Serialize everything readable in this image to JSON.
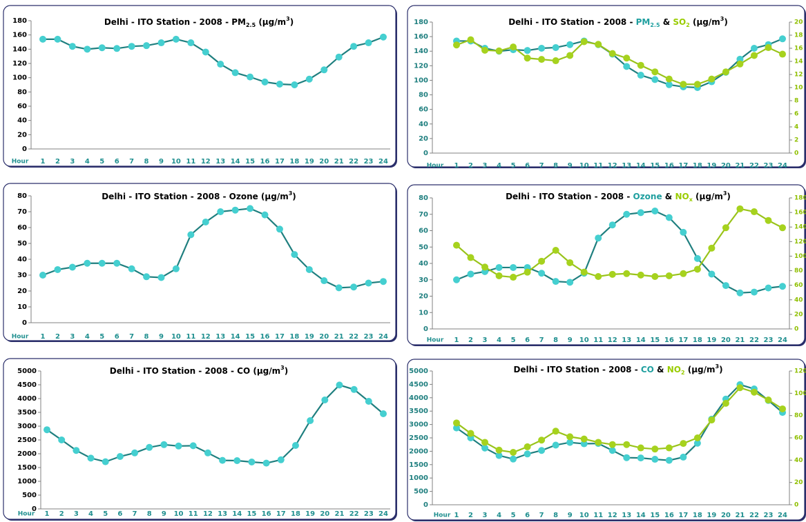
{
  "chart_data": [
    {
      "type": "line",
      "title": [
        {
          "text": "Delhi - ITO Station - 2008 - PM"
        },
        {
          "text": "2.5",
          "sub": true
        },
        {
          "text": " (µg/m"
        },
        {
          "text": "3",
          "sup": true
        },
        {
          "text": ")"
        }
      ],
      "xlabel": "Hour",
      "categories": [
        "1",
        "2",
        "3",
        "4",
        "5",
        "6",
        "7",
        "8",
        "9",
        "10",
        "11",
        "12",
        "13",
        "14",
        "15",
        "16",
        "17",
        "18",
        "19",
        "20",
        "21",
        "22",
        "23",
        "24"
      ],
      "ylim": [
        0,
        180
      ],
      "yticks": [
        0,
        20,
        40,
        60,
        80,
        100,
        120,
        140,
        160,
        180
      ],
      "ytick_color": "#000000",
      "series": [
        {
          "name": "PM2.5",
          "color": "#45cfd0",
          "line_color": "#1f7f7f",
          "values": [
            154,
            154,
            144,
            140,
            142,
            141,
            144,
            145,
            149,
            154,
            149,
            136,
            119,
            107,
            101,
            94,
            91,
            90,
            98,
            111,
            129,
            144,
            149,
            157
          ]
        }
      ]
    },
    {
      "type": "line",
      "title": [
        {
          "text": "Delhi - ITO Station - 2008 - "
        },
        {
          "text": "PM",
          "color": "#1f9f9f"
        },
        {
          "text": "2.5",
          "sub": true,
          "color": "#1f9f9f"
        },
        {
          "text": " & "
        },
        {
          "text": "SO",
          "color": "#99cc00"
        },
        {
          "text": "2",
          "sub": true,
          "color": "#99cc00"
        },
        {
          "text": " (µg/m"
        },
        {
          "text": "3",
          "sup": true
        },
        {
          "text": ")"
        }
      ],
      "xlabel": "Hour",
      "categories": [
        "1",
        "2",
        "3",
        "4",
        "5",
        "6",
        "7",
        "8",
        "9",
        "10",
        "11",
        "12",
        "13",
        "14",
        "15",
        "16",
        "17",
        "18",
        "19",
        "20",
        "21",
        "22",
        "23",
        "24"
      ],
      "ylim": [
        0,
        180
      ],
      "yticks": [
        0,
        20,
        40,
        60,
        80,
        100,
        120,
        140,
        160,
        180
      ],
      "ytick_color": "#1f7f7f",
      "y2lim": [
        0,
        20
      ],
      "y2ticks": [
        0,
        2,
        4,
        6,
        8,
        10,
        12,
        14,
        16,
        18,
        20
      ],
      "y2tick_color": "#8fbf00",
      "series": [
        {
          "name": "PM2.5",
          "color": "#45cfd0",
          "line_color": "#1f7f7f",
          "values": [
            154,
            154,
            144,
            140,
            142,
            141,
            144,
            145,
            149,
            154,
            149,
            136,
            119,
            107,
            101,
            94,
            91,
            90,
            98,
            111,
            129,
            144,
            149,
            157
          ]
        },
        {
          "name": "SO2",
          "color": "#a6d21e",
          "line_color": "#99c31a",
          "axis": "y2",
          "values": [
            16.5,
            17.3,
            15.7,
            15.6,
            16.2,
            14.5,
            14.3,
            14.1,
            14.9,
            17,
            16.6,
            15.2,
            14.5,
            13.4,
            12.4,
            11.3,
            10.5,
            10.5,
            11.3,
            12.4,
            13.6,
            14.9,
            16.1,
            15.1
          ]
        }
      ]
    },
    {
      "type": "line",
      "title": [
        {
          "text": "Delhi - ITO Station - 2008 - Ozone (µg/m"
        },
        {
          "text": "3",
          "sup": true
        },
        {
          "text": ")"
        }
      ],
      "xlabel": "Hour",
      "categories": [
        "1",
        "2",
        "3",
        "4",
        "5",
        "6",
        "7",
        "8",
        "9",
        "10",
        "11",
        "12",
        "13",
        "14",
        "15",
        "16",
        "17",
        "18",
        "19",
        "20",
        "21",
        "22",
        "23",
        "24"
      ],
      "ylim": [
        0,
        80
      ],
      "yticks": [
        0,
        10,
        20,
        30,
        40,
        50,
        60,
        70,
        80
      ],
      "ytick_color": "#000000",
      "series": [
        {
          "name": "Ozone",
          "color": "#45cfd0",
          "line_color": "#1f7f7f",
          "values": [
            30,
            33.5,
            35,
            37.5,
            37.5,
            37.5,
            34,
            29,
            28.5,
            34,
            55.5,
            63.5,
            70,
            71,
            72,
            68,
            59,
            43,
            33.5,
            26.5,
            22,
            22.5,
            25,
            26
          ]
        }
      ]
    },
    {
      "type": "line",
      "title": [
        {
          "text": "Delhi - ITO Station - 2008 - "
        },
        {
          "text": "Ozone",
          "color": "#1f9f9f"
        },
        {
          "text": " & "
        },
        {
          "text": "NO",
          "color": "#99cc00"
        },
        {
          "text": "x",
          "sub": true,
          "color": "#99cc00"
        },
        {
          "text": " (µg/m"
        },
        {
          "text": "3",
          "sup": true
        },
        {
          "text": ")"
        }
      ],
      "xlabel": "Hour",
      "categories": [
        "1",
        "2",
        "3",
        "4",
        "5",
        "6",
        "7",
        "8",
        "9",
        "10",
        "11",
        "12",
        "13",
        "14",
        "15",
        "16",
        "17",
        "18",
        "19",
        "20",
        "21",
        "22",
        "23",
        "24"
      ],
      "ylim": [
        0,
        80
      ],
      "yticks": [
        0,
        10,
        20,
        30,
        40,
        50,
        60,
        70,
        80
      ],
      "ytick_color": "#1f7f7f",
      "y2lim": [
        0,
        180
      ],
      "y2ticks": [
        0,
        20,
        40,
        60,
        80,
        100,
        120,
        140,
        160,
        180
      ],
      "y2tick_color": "#8fbf00",
      "series": [
        {
          "name": "Ozone",
          "color": "#45cfd0",
          "line_color": "#1f7f7f",
          "values": [
            30,
            33.5,
            35,
            37.5,
            37.5,
            37.5,
            34,
            29,
            28.5,
            34,
            55.5,
            63.5,
            70,
            71,
            72,
            68,
            59,
            43,
            33.5,
            26.5,
            22,
            22.5,
            25,
            26
          ]
        },
        {
          "name": "NOx",
          "color": "#a6d21e",
          "line_color": "#99c31a",
          "axis": "y2",
          "values": [
            115,
            98,
            85,
            73,
            71,
            78,
            93,
            108,
            91,
            78,
            72,
            75,
            76,
            74,
            72,
            73,
            76,
            82,
            111,
            139,
            165,
            161,
            149,
            139
          ]
        }
      ]
    },
    {
      "type": "line",
      "title": [
        {
          "text": "Delhi - ITO Station - 2008 - CO (µg/m"
        },
        {
          "text": "3",
          "sup": true
        },
        {
          "text": ")"
        }
      ],
      "xlabel": "Hour",
      "categories": [
        "1",
        "2",
        "3",
        "4",
        "5",
        "6",
        "7",
        "8",
        "9",
        "10",
        "11",
        "12",
        "13",
        "14",
        "15",
        "16",
        "17",
        "18",
        "19",
        "20",
        "21",
        "22",
        "23",
        "24"
      ],
      "ylim": [
        0,
        5000
      ],
      "yticks": [
        0,
        500,
        1000,
        1500,
        2000,
        2500,
        3000,
        3500,
        4000,
        4500,
        5000
      ],
      "ytick_color": "#000000",
      "series": [
        {
          "name": "CO",
          "color": "#45cfd0",
          "line_color": "#1f7f7f",
          "values": [
            2870,
            2500,
            2120,
            1840,
            1710,
            1900,
            2030,
            2230,
            2330,
            2280,
            2290,
            2030,
            1760,
            1750,
            1700,
            1660,
            1780,
            2300,
            3200,
            3950,
            4490,
            4330,
            3900,
            3450
          ]
        }
      ]
    },
    {
      "type": "line",
      "title": [
        {
          "text": "Delhi - ITO Station - 2008 - "
        },
        {
          "text": "CO",
          "color": "#1f9f9f"
        },
        {
          "text": " & "
        },
        {
          "text": "NO",
          "color": "#99cc00"
        },
        {
          "text": "2",
          "sub": true,
          "color": "#99cc00"
        },
        {
          "text": " (µg/m"
        },
        {
          "text": "3",
          "sup": true
        },
        {
          "text": ")"
        }
      ],
      "xlabel": "Hour",
      "categories": [
        "1",
        "2",
        "3",
        "4",
        "5",
        "6",
        "7",
        "8",
        "9",
        "10",
        "11",
        "12",
        "13",
        "14",
        "15",
        "16",
        "17",
        "18",
        "19",
        "20",
        "21",
        "22",
        "23",
        "24"
      ],
      "ylim": [
        0,
        5000
      ],
      "yticks": [
        0,
        500,
        1000,
        1500,
        2000,
        2500,
        3000,
        3500,
        4000,
        4500,
        5000
      ],
      "ytick_color": "#1f7f7f",
      "y2lim": [
        0,
        120
      ],
      "y2ticks": [
        0,
        20,
        40,
        60,
        80,
        100,
        120
      ],
      "y2tick_color": "#8fbf00",
      "series": [
        {
          "name": "CO",
          "color": "#45cfd0",
          "line_color": "#1f7f7f",
          "values": [
            2870,
            2500,
            2120,
            1840,
            1710,
            1900,
            2030,
            2230,
            2330,
            2280,
            2290,
            2030,
            1760,
            1750,
            1700,
            1660,
            1780,
            2300,
            3200,
            3950,
            4490,
            4330,
            3900,
            3450
          ]
        },
        {
          "name": "NO2",
          "color": "#a6d21e",
          "line_color": "#99c31a",
          "axis": "y2",
          "values": [
            73.4,
            64,
            56,
            49,
            47,
            52,
            58,
            66,
            61,
            59,
            56,
            54,
            54,
            51,
            50,
            51,
            55,
            60,
            76,
            91,
            105,
            101,
            94,
            86
          ]
        }
      ]
    }
  ]
}
